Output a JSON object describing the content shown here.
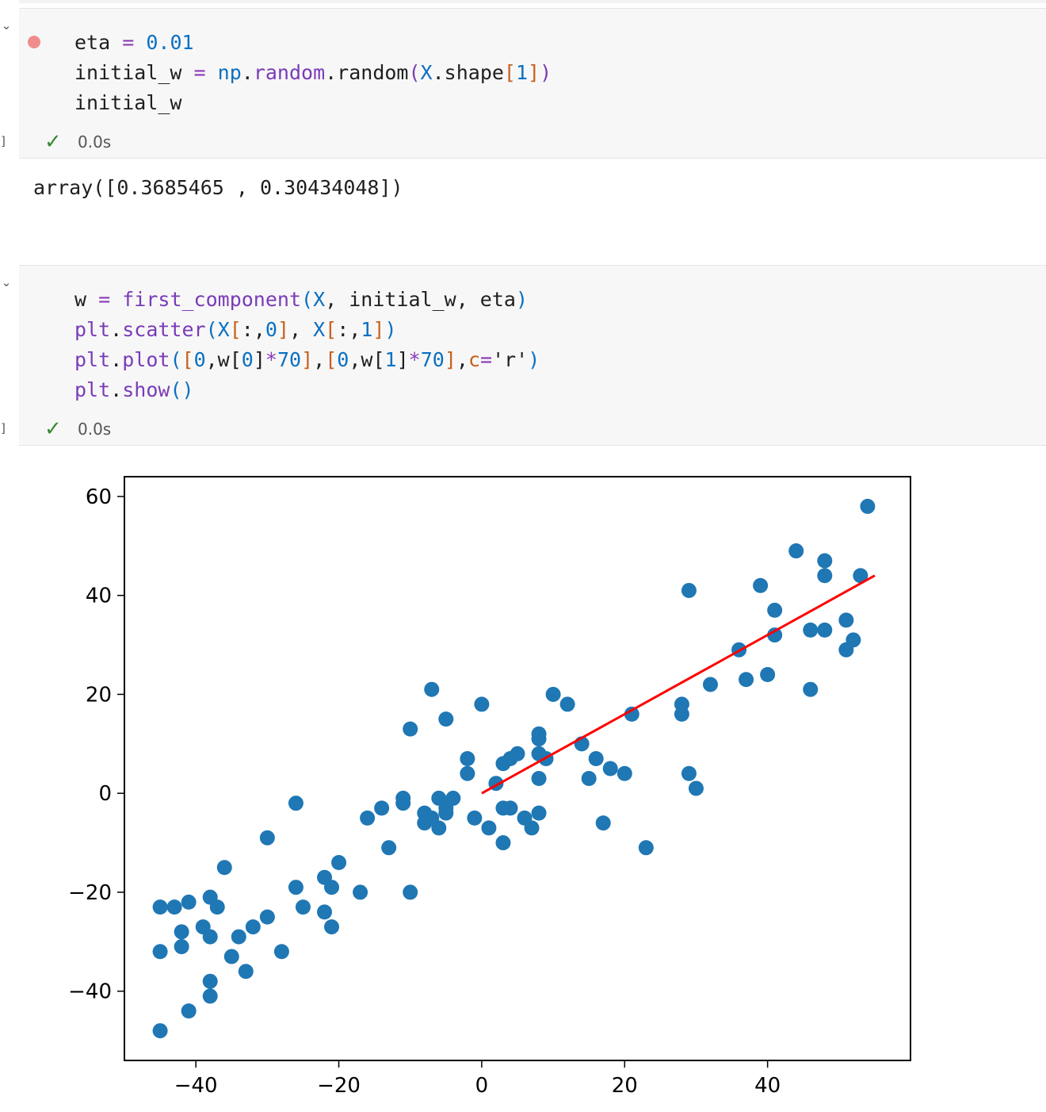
{
  "cell1": {
    "collapse_icon": "chevron-down-icon",
    "status_icon": "check-icon",
    "exec_time": "0.0s",
    "code_lines": [
      [
        {
          "t": "eta ",
          "c": "t-kw"
        },
        {
          "t": "=",
          "c": "t-op"
        },
        {
          "t": " ",
          "c": "t-kw"
        },
        {
          "t": "0.01",
          "c": "t-num"
        }
      ],
      [
        {
          "t": "initial_w ",
          "c": "t-kw"
        },
        {
          "t": "=",
          "c": "t-op"
        },
        {
          "t": " ",
          "c": "t-kw"
        },
        {
          "t": "np",
          "c": "t-mod"
        },
        {
          "t": ".",
          "c": "t-kw"
        },
        {
          "t": "random",
          "c": "t-fn"
        },
        {
          "t": ".random",
          "c": "t-kw"
        },
        {
          "t": "(",
          "c": "t-fn"
        },
        {
          "t": "X",
          "c": "t-mod"
        },
        {
          "t": ".shape",
          "c": "t-kw"
        },
        {
          "t": "[",
          "c": "t-br"
        },
        {
          "t": "1",
          "c": "t-num"
        },
        {
          "t": "]",
          "c": "t-br"
        },
        {
          "t": ")",
          "c": "t-fn"
        }
      ],
      [
        {
          "t": "initial_w",
          "c": "t-kw"
        }
      ]
    ],
    "output": "array([0.3685465 , 0.30434048])"
  },
  "cell2": {
    "collapse_icon": "chevron-down-icon",
    "status_icon": "check-icon",
    "exec_time": "0.0s",
    "code_lines": [
      [
        {
          "t": "w ",
          "c": "t-kw"
        },
        {
          "t": "=",
          "c": "t-op"
        },
        {
          "t": " ",
          "c": "t-kw"
        },
        {
          "t": "first_component",
          "c": "t-fn"
        },
        {
          "t": "(",
          "c": "t-br2"
        },
        {
          "t": "X",
          "c": "t-mod"
        },
        {
          "t": ", initial_w, eta",
          "c": "t-kw"
        },
        {
          "t": ")",
          "c": "t-br2"
        }
      ],
      [
        {
          "t": "plt",
          "c": "t-fn"
        },
        {
          "t": ".",
          "c": "t-kw"
        },
        {
          "t": "scatter",
          "c": "t-fn"
        },
        {
          "t": "(",
          "c": "t-br2"
        },
        {
          "t": "X",
          "c": "t-mod"
        },
        {
          "t": "[",
          "c": "t-br"
        },
        {
          "t": ":,",
          "c": "t-kw"
        },
        {
          "t": "0",
          "c": "t-num"
        },
        {
          "t": "]",
          "c": "t-br"
        },
        {
          "t": ", ",
          "c": "t-kw"
        },
        {
          "t": "X",
          "c": "t-mod"
        },
        {
          "t": "[",
          "c": "t-br"
        },
        {
          "t": ":,",
          "c": "t-kw"
        },
        {
          "t": "1",
          "c": "t-num"
        },
        {
          "t": "]",
          "c": "t-br"
        },
        {
          "t": ")",
          "c": "t-br2"
        }
      ],
      [
        {
          "t": "plt",
          "c": "t-fn"
        },
        {
          "t": ".",
          "c": "t-kw"
        },
        {
          "t": "plot",
          "c": "t-fn"
        },
        {
          "t": "(",
          "c": "t-br2"
        },
        {
          "t": "[",
          "c": "t-br"
        },
        {
          "t": "0",
          "c": "t-num"
        },
        {
          "t": ",w",
          "c": "t-kw"
        },
        {
          "t": "[",
          "c": "t-kw"
        },
        {
          "t": "0",
          "c": "t-num"
        },
        {
          "t": "]",
          "c": "t-kw"
        },
        {
          "t": "*",
          "c": "t-op"
        },
        {
          "t": "70",
          "c": "t-num"
        },
        {
          "t": "]",
          "c": "t-br"
        },
        {
          "t": ",",
          "c": "t-kw"
        },
        {
          "t": "[",
          "c": "t-br"
        },
        {
          "t": "0",
          "c": "t-num"
        },
        {
          "t": ",w",
          "c": "t-kw"
        },
        {
          "t": "[",
          "c": "t-kw"
        },
        {
          "t": "1",
          "c": "t-num"
        },
        {
          "t": "]",
          "c": "t-kw"
        },
        {
          "t": "*",
          "c": "t-op"
        },
        {
          "t": "70",
          "c": "t-num"
        },
        {
          "t": "]",
          "c": "t-br"
        },
        {
          "t": ",",
          "c": "t-kw"
        },
        {
          "t": "c",
          "c": "t-br"
        },
        {
          "t": "=",
          "c": "t-op"
        },
        {
          "t": "'r'",
          "c": "t-kw"
        },
        {
          "t": ")",
          "c": "t-br2"
        }
      ],
      [
        {
          "t": "plt",
          "c": "t-fn"
        },
        {
          "t": ".",
          "c": "t-kw"
        },
        {
          "t": "show",
          "c": "t-fn"
        },
        {
          "t": "()",
          "c": "t-br2"
        }
      ]
    ]
  },
  "chart_data": {
    "type": "scatter",
    "title": "",
    "xlabel": "",
    "ylabel": "",
    "xlim": [
      -50,
      60
    ],
    "ylim": [
      -54,
      64
    ],
    "xticks": [
      -40,
      -20,
      0,
      20,
      40
    ],
    "yticks": [
      -40,
      -20,
      0,
      20,
      40,
      60
    ],
    "xtick_labels": [
      "−40",
      "−20",
      "0",
      "20",
      "40"
    ],
    "ytick_labels": [
      "−40",
      "−20",
      "0",
      "20",
      "40",
      "60"
    ],
    "colors": {
      "points": "#1f77b4",
      "line": "#ff0000"
    },
    "series": [
      {
        "type": "scatter",
        "points": [
          [
            -45,
            -23
          ],
          [
            -43,
            -23
          ],
          [
            -41,
            -22
          ],
          [
            -42,
            -28
          ],
          [
            -42,
            -31
          ],
          [
            -45,
            -32
          ],
          [
            -39,
            -27
          ],
          [
            -38,
            -21
          ],
          [
            -37,
            -23
          ],
          [
            -38,
            -29
          ],
          [
            -36,
            -15
          ],
          [
            -35,
            -33
          ],
          [
            -34,
            -29
          ],
          [
            -32,
            -27
          ],
          [
            -33,
            -36
          ],
          [
            -38,
            -38
          ],
          [
            -38,
            -41
          ],
          [
            -41,
            -44
          ],
          [
            -45,
            -48
          ],
          [
            -30,
            -9
          ],
          [
            -30,
            -25
          ],
          [
            -28,
            -32
          ],
          [
            -26,
            -2
          ],
          [
            -26,
            -19
          ],
          [
            -25,
            -23
          ],
          [
            -22,
            -17
          ],
          [
            -21,
            -19
          ],
          [
            -22,
            -24
          ],
          [
            -21,
            -27
          ],
          [
            -20,
            -14
          ],
          [
            -17,
            -20
          ],
          [
            -16,
            -5
          ],
          [
            -14,
            -3
          ],
          [
            -13,
            -11
          ],
          [
            -11,
            -2
          ],
          [
            -11,
            -1
          ],
          [
            -10,
            -20
          ],
          [
            -10,
            13
          ],
          [
            -8,
            -4
          ],
          [
            -8,
            -6
          ],
          [
            -7,
            -5
          ],
          [
            -7,
            21
          ],
          [
            -6,
            -7
          ],
          [
            -6,
            -1
          ],
          [
            -5,
            15
          ],
          [
            -5,
            -3
          ],
          [
            -4,
            -1
          ],
          [
            -5,
            -4
          ],
          [
            -2,
            4
          ],
          [
            -2,
            7
          ],
          [
            -1,
            -5
          ],
          [
            0,
            18
          ],
          [
            1,
            -7
          ],
          [
            2,
            2
          ],
          [
            3,
            -10
          ],
          [
            3,
            -3
          ],
          [
            3,
            6
          ],
          [
            4,
            -3
          ],
          [
            4,
            7
          ],
          [
            5,
            8
          ],
          [
            6,
            -5
          ],
          [
            7,
            -7
          ],
          [
            8,
            -4
          ],
          [
            8,
            12
          ],
          [
            8,
            11
          ],
          [
            8,
            8
          ],
          [
            8,
            3
          ],
          [
            9,
            7
          ],
          [
            10,
            20
          ],
          [
            12,
            18
          ],
          [
            14,
            10
          ],
          [
            15,
            3
          ],
          [
            16,
            7
          ],
          [
            17,
            -6
          ],
          [
            18,
            5
          ],
          [
            20,
            4
          ],
          [
            21,
            16
          ],
          [
            23,
            -11
          ],
          [
            28,
            18
          ],
          [
            28,
            16
          ],
          [
            29,
            4
          ],
          [
            29,
            41
          ],
          [
            30,
            1
          ],
          [
            32,
            22
          ],
          [
            36,
            29
          ],
          [
            37,
            23
          ],
          [
            39,
            42
          ],
          [
            40,
            24
          ],
          [
            41,
            32
          ],
          [
            41,
            37
          ],
          [
            44,
            49
          ],
          [
            46,
            21
          ],
          [
            46,
            33
          ],
          [
            48,
            33
          ],
          [
            48,
            47
          ],
          [
            48,
            44
          ],
          [
            51,
            29
          ],
          [
            51,
            35
          ],
          [
            52,
            31
          ],
          [
            53,
            44
          ],
          [
            54,
            58
          ]
        ]
      },
      {
        "type": "line",
        "points": [
          [
            0,
            0
          ],
          [
            55,
            44
          ]
        ]
      }
    ]
  }
}
